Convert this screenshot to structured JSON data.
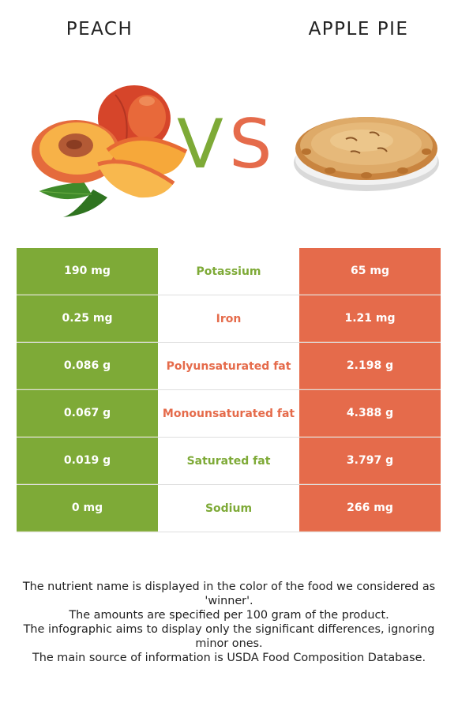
{
  "header": {
    "left_title": "PEACH",
    "right_title": "APPLE PIE",
    "vs_v": "V",
    "vs_s": "S"
  },
  "colors": {
    "peach_green": "#7eaa37",
    "apple_pie_orange": "#e56b4b"
  },
  "table": {
    "rows": [
      {
        "left": "190 mg",
        "nutrient": "Potassium",
        "right": "65 mg",
        "winner": "left"
      },
      {
        "left": "0.25 mg",
        "nutrient": "Iron",
        "right": "1.21 mg",
        "winner": "right"
      },
      {
        "left": "0.086 g",
        "nutrient": "Polyunsaturated fat",
        "right": "2.198 g",
        "winner": "right"
      },
      {
        "left": "0.067 g",
        "nutrient": "Monounsaturated fat",
        "right": "4.388 g",
        "winner": "right"
      },
      {
        "left": "0.019 g",
        "nutrient": "Saturated fat",
        "right": "3.797 g",
        "winner": "left"
      },
      {
        "left": "0 mg",
        "nutrient": "Sodium",
        "right": "266 mg",
        "winner": "left"
      }
    ]
  },
  "footer": {
    "line1": "The nutrient name is displayed in the color of the food we considered as 'winner'.",
    "line2": "The amounts are specified per 100 gram of the product.",
    "line3": "The infographic aims to display only the significant differences, ignoring minor ones.",
    "line4": "The main source of information is USDA Food Composition Database."
  }
}
